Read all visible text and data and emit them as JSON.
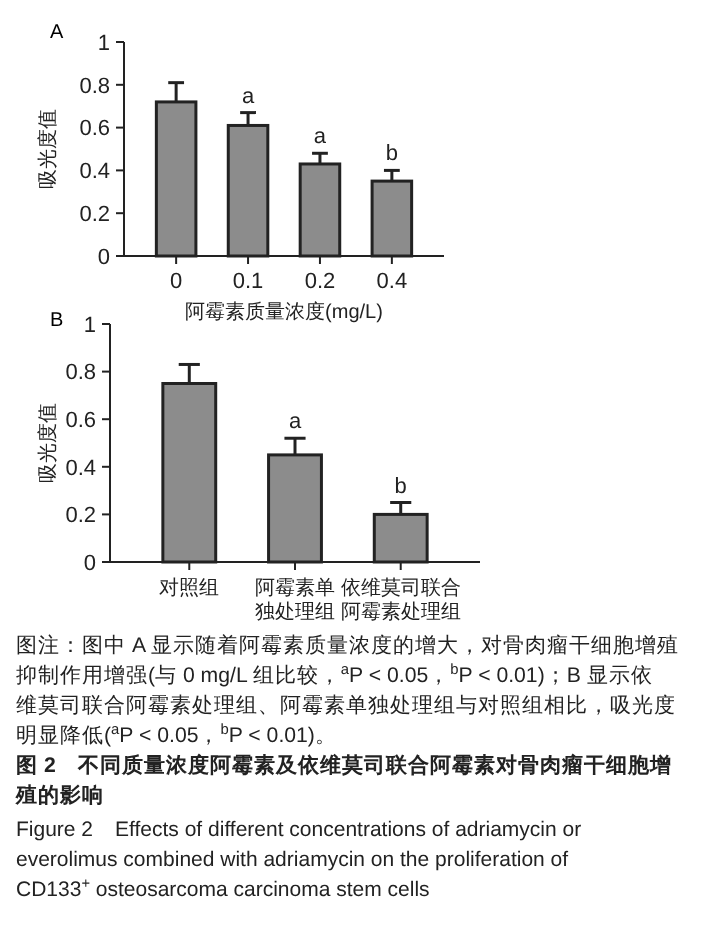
{
  "chart_data": [
    {
      "type": "bar",
      "title": "A",
      "xlabel": "阿霉素质量浓度(mg/L)",
      "ylabel": "吸光度值",
      "categories": [
        "0",
        "0.1",
        "0.2",
        "0.4"
      ],
      "values": [
        0.72,
        0.61,
        0.43,
        0.35
      ],
      "errors": [
        [
          0.72,
          0.81
        ],
        [
          0.61,
          0.67
        ],
        [
          0.43,
          0.48
        ],
        [
          0.35,
          0.4
        ]
      ],
      "color": "#8c8c8c",
      "ylim": [
        0,
        1.0
      ],
      "yticks": [
        0,
        0.2,
        0.4,
        0.6,
        0.8,
        1.0
      ],
      "annotations": [
        {
          "text": "a",
          "x": "0.1",
          "y": 0.67
        },
        {
          "text": "a",
          "x": "0.2",
          "y": 0.48
        },
        {
          "text": "b",
          "x": "0.4",
          "y": 0.4
        }
      ]
    },
    {
      "type": "bar",
      "title": "B",
      "ylabel": "吸光度值",
      "categories": [
        "对照组",
        "阿霉素单独处理组",
        "依维莫司联合阿霉素处理组"
      ],
      "values": [
        0.75,
        0.45,
        0.2
      ],
      "errors": [
        [
          0.75,
          0.83
        ],
        [
          0.45,
          0.52
        ],
        [
          0.2,
          0.25
        ]
      ],
      "color": "#8c8c8c",
      "ylim": [
        0,
        1.0
      ],
      "yticks": [
        0,
        0.2,
        0.4,
        0.6,
        0.8,
        1.0
      ],
      "annotations": [
        {
          "text": "a",
          "x": "阿霉素单独处理组",
          "y": 0.52
        },
        {
          "text": "b",
          "x": "依维莫司联合阿霉素处理组",
          "y": 0.25
        },
        "图注：图中 A 显示随着阿霉素质量浓度的增大，对骨肉瘤干细胞增殖",
        "抑制作用增强(与 0 mg/L 组比较，$^{a}$P < 0.05，$^{b}$P < 0.01)；B 显示依",
        "维莫司联合阿霉素处理组、阿霉素单独处理组与对照组相比，吸光度",
        "明显降低($^{a}$P < 0.05，$^{b}$P < 0.01)。",
        "图 2　不同质量浓度阿霉素及依维莫司联合阿霉素对骨肉瘤干细胞增",
        "殖的影响",
        "Figure 2　Effects of different concentrations of adriamycin or",
        "everolimus combined with adriamycin on the proliferation of",
        "CD133$^{+}$ osteosarcoma carcinoma stem cells"
      ]
    }
  ]
}
